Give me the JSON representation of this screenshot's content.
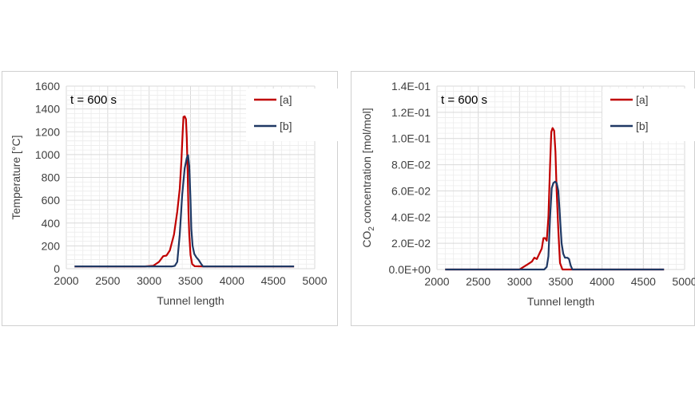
{
  "chart_data": [
    {
      "type": "line",
      "annotation": "t = 600 s",
      "xlabel": "Tunnel length",
      "ylabel": "Temperature [°C]",
      "xlim": [
        2000,
        5000
      ],
      "ylim": [
        0,
        1600
      ],
      "x_ticks": [
        "2000",
        "2500",
        "3000",
        "3500",
        "4000",
        "4500",
        "5000"
      ],
      "y_ticks": [
        "0",
        "200",
        "400",
        "600",
        "800",
        "1000",
        "1200",
        "1400",
        "1600"
      ],
      "grid": true,
      "legend_position": "top-right",
      "series": [
        {
          "name": "[a]",
          "color": "#c00000",
          "points": [
            [
              2100,
              20
            ],
            [
              2950,
              20
            ],
            [
              3050,
              25
            ],
            [
              3120,
              60
            ],
            [
              3170,
              110
            ],
            [
              3210,
              115
            ],
            [
              3250,
              160
            ],
            [
              3300,
              300
            ],
            [
              3340,
              500
            ],
            [
              3370,
              700
            ],
            [
              3390,
              950
            ],
            [
              3405,
              1200
            ],
            [
              3415,
              1330
            ],
            [
              3430,
              1335
            ],
            [
              3445,
              1310
            ],
            [
              3455,
              1150
            ],
            [
              3465,
              850
            ],
            [
              3475,
              500
            ],
            [
              3485,
              300
            ],
            [
              3500,
              120
            ],
            [
              3520,
              40
            ],
            [
              3550,
              22
            ],
            [
              3650,
              20
            ],
            [
              4750,
              20
            ]
          ]
        },
        {
          "name": "[b]",
          "color": "#1f3864",
          "points": [
            [
              2100,
              20
            ],
            [
              3280,
              20
            ],
            [
              3310,
              25
            ],
            [
              3340,
              60
            ],
            [
              3370,
              300
            ],
            [
              3400,
              650
            ],
            [
              3430,
              880
            ],
            [
              3455,
              970
            ],
            [
              3470,
              995
            ],
            [
              3485,
              900
            ],
            [
              3500,
              600
            ],
            [
              3510,
              350
            ],
            [
              3525,
              200
            ],
            [
              3545,
              130
            ],
            [
              3570,
              100
            ],
            [
              3600,
              75
            ],
            [
              3630,
              40
            ],
            [
              3650,
              20
            ],
            [
              4750,
              20
            ]
          ]
        }
      ]
    },
    {
      "type": "line",
      "annotation": "t = 600 s",
      "xlabel": "Tunnel length",
      "ylabel_main": "CO",
      "ylabel_sub": "2",
      "ylabel_rest": " concentration [mol/mol]",
      "xlim": [
        2000,
        5000
      ],
      "ylim": [
        0,
        0.14
      ],
      "x_ticks": [
        "2000",
        "2500",
        "3000",
        "3500",
        "4000",
        "4500",
        "5000"
      ],
      "y_ticks": [
        "0.0E+00",
        "2.0E-02",
        "4.0E-02",
        "6.0E-02",
        "8.0E-02",
        "1.0E-01",
        "1.2E-01",
        "1.4E-01"
      ],
      "grid": true,
      "legend_position": "top-right",
      "series": [
        {
          "name": "[a]",
          "color": "#c00000",
          "points": [
            [
              2100,
              0
            ],
            [
              3000,
              0
            ],
            [
              3050,
              0.002
            ],
            [
              3100,
              0.004
            ],
            [
              3150,
              0.006
            ],
            [
              3180,
              0.009
            ],
            [
              3210,
              0.008
            ],
            [
              3240,
              0.012
            ],
            [
              3270,
              0.016
            ],
            [
              3290,
              0.024
            ],
            [
              3310,
              0.024
            ],
            [
              3330,
              0.022
            ],
            [
              3350,
              0.04
            ],
            [
              3370,
              0.08
            ],
            [
              3385,
              0.105
            ],
            [
              3400,
              0.108
            ],
            [
              3420,
              0.106
            ],
            [
              3435,
              0.09
            ],
            [
              3450,
              0.06
            ],
            [
              3470,
              0.03
            ],
            [
              3490,
              0.005
            ],
            [
              3520,
              0
            ],
            [
              4750,
              0
            ]
          ]
        },
        {
          "name": "[b]",
          "color": "#1f3864",
          "points": [
            [
              2100,
              0
            ],
            [
              3300,
              0
            ],
            [
              3330,
              0.002
            ],
            [
              3350,
              0.01
            ],
            [
              3370,
              0.04
            ],
            [
              3390,
              0.062
            ],
            [
              3410,
              0.066
            ],
            [
              3430,
              0.067
            ],
            [
              3450,
              0.066
            ],
            [
              3470,
              0.06
            ],
            [
              3490,
              0.04
            ],
            [
              3510,
              0.02
            ],
            [
              3530,
              0.012
            ],
            [
              3550,
              0.009
            ],
            [
              3580,
              0.009
            ],
            [
              3600,
              0.008
            ],
            [
              3620,
              0.003
            ],
            [
              3640,
              0
            ],
            [
              4750,
              0
            ]
          ]
        }
      ]
    }
  ]
}
